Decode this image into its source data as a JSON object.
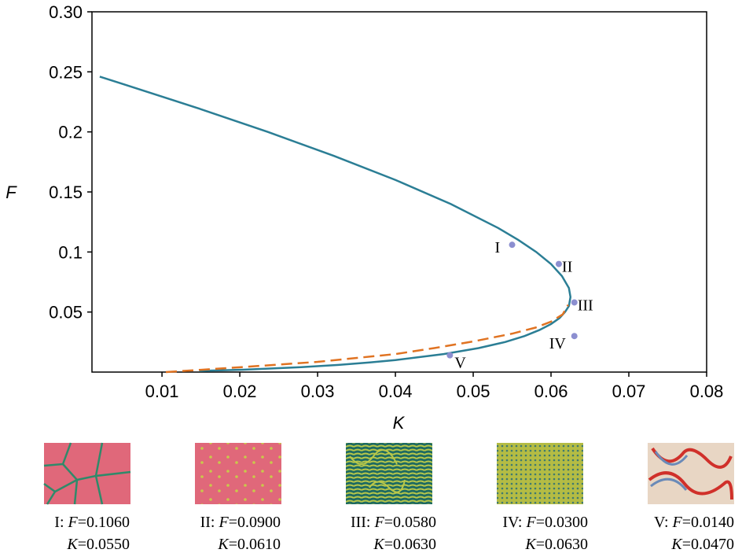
{
  "chart_data": {
    "type": "line",
    "x_label": "K",
    "y_label": "F",
    "xlim": [
      0.001,
      0.08
    ],
    "ylim": [
      0,
      0.3
    ],
    "xticks": [
      0.01,
      0.02,
      0.03,
      0.04,
      0.05,
      0.06,
      0.07,
      0.08
    ],
    "yticks": [
      0.05,
      0.1,
      0.15,
      0.2,
      0.25,
      {
        "value": 0.3,
        "label": "0.30"
      }
    ],
    "series": [
      {
        "color": "#2b7e95",
        "dash": false,
        "x": [
          0.0148,
          0.0204,
          0.0276,
          0.0327,
          0.0367,
          0.04,
          0.0462,
          0.0507,
          0.0541,
          0.0566,
          0.0585,
          0.06,
          0.0611,
          0.0618,
          0.0623,
          0.0625,
          0.0623,
          0.0614,
          0.06,
          0.0581,
          0.0558,
          0.0532,
          0.0471,
          0.04,
          0.0321,
          0.0236,
          0.0145,
          0.0049,
          0.002
        ],
        "values": [
          0.001,
          0.002,
          0.004,
          0.006,
          0.008,
          0.01,
          0.015,
          0.02,
          0.025,
          0.03,
          0.035,
          0.04,
          0.045,
          0.05,
          0.055,
          0.0625,
          0.07,
          0.08,
          0.09,
          0.1,
          0.11,
          0.12,
          0.14,
          0.16,
          0.18,
          0.2,
          0.22,
          0.24,
          0.246
        ]
      },
      {
        "color": "#e07322",
        "dash": true,
        "x": [
          0.0105,
          0.02,
          0.03,
          0.04,
          0.045,
          0.05,
          0.055,
          0.058,
          0.06,
          0.0615,
          0.0622
        ],
        "values": [
          0,
          0.004,
          0.0085,
          0.015,
          0.02,
          0.0255,
          0.032,
          0.037,
          0.042,
          0.048,
          0.056
        ]
      }
    ],
    "points": {
      "color": "#8c8fd0",
      "labels": [
        "I",
        "II",
        "III",
        "IV",
        "V"
      ],
      "x": [
        0.055,
        0.061,
        0.063,
        0.063,
        0.047
      ],
      "values": [
        0.106,
        0.09,
        0.058,
        0.03,
        0.014
      ]
    }
  },
  "captions": [
    {
      "head": "I: ",
      "f": "F",
      "f_text": "=0.1060",
      "k": "K",
      "k_text": "=0.0550"
    },
    {
      "head": "II: ",
      "f": "F",
      "f_text": "=0.0900",
      "k": "K",
      "k_text": "=0.0610"
    },
    {
      "head": "III: ",
      "f": "F",
      "f_text": "=0.0580",
      "k": "K",
      "k_text": "=0.0630"
    },
    {
      "head": "IV: ",
      "f": "F",
      "f_text": "=0.0300",
      "k": "K",
      "k_text": "=0.0630"
    },
    {
      "head": "V: ",
      "f": "F",
      "f_text": "=0.0140",
      "k": "K",
      "k_text": "=0.0470"
    }
  ]
}
